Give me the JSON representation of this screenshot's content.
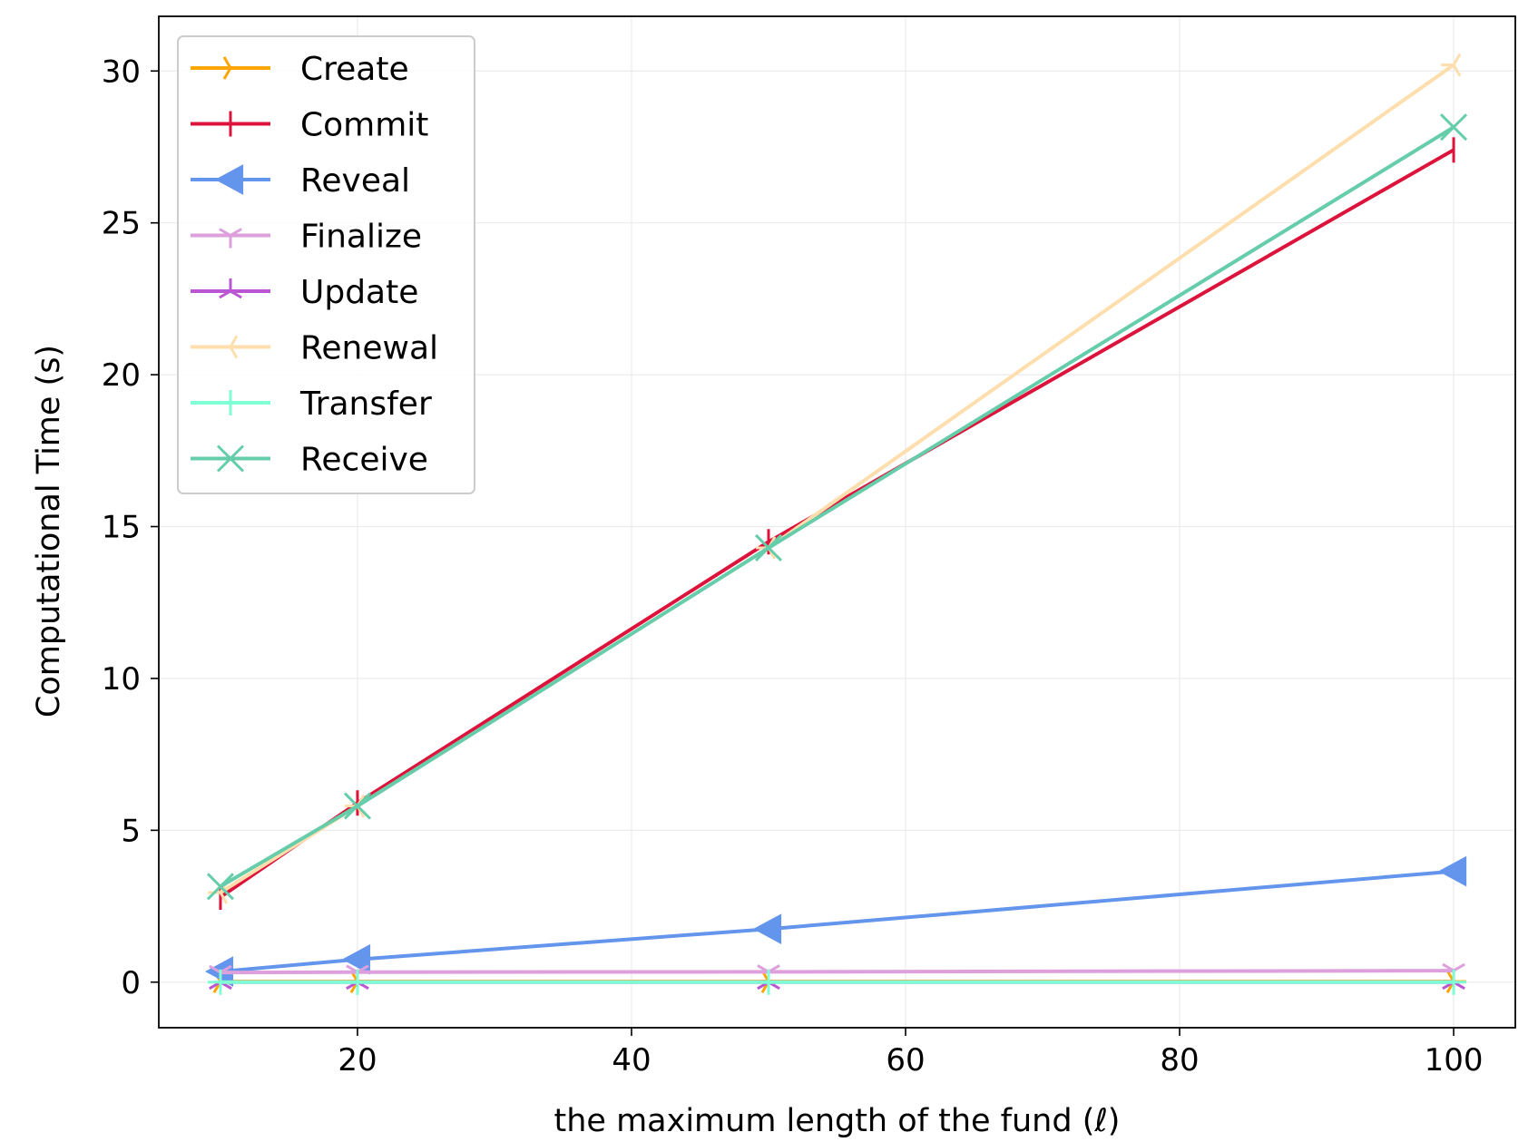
{
  "chart_data": {
    "type": "line",
    "xlabel": "the maximum length of the fund (ℓ)",
    "ylabel": "Computational Time (s)",
    "x": [
      10,
      20,
      50,
      100
    ],
    "xlim": [
      5.5,
      104.5
    ],
    "ylim": [
      -1.5,
      31.8
    ],
    "xticks": [
      20,
      40,
      60,
      80,
      100
    ],
    "xtick_labels": [
      "20",
      "40",
      "60",
      "80",
      "100"
    ],
    "yticks": [
      0,
      5,
      10,
      15,
      20,
      25,
      30
    ],
    "ytick_labels": [
      "0",
      "5",
      "10",
      "15",
      "20",
      "25",
      "30"
    ],
    "grid": true,
    "legend_position": "top-left",
    "series": [
      {
        "name": "Create",
        "color": "#FFA500",
        "marker": "tri_right",
        "values": [
          0.02,
          0.02,
          0.02,
          0.02
        ]
      },
      {
        "name": "Commit",
        "color": "#DC143C",
        "marker": "vline",
        "values": [
          2.8,
          5.9,
          14.5,
          27.4
        ]
      },
      {
        "name": "Reveal",
        "color": "#6495ED",
        "marker": "triangle_left",
        "values": [
          0.35,
          0.75,
          1.75,
          3.65
        ]
      },
      {
        "name": "Finalize",
        "color": "#DDA0DD",
        "marker": "tri_down",
        "values": [
          0.32,
          0.33,
          0.34,
          0.38
        ]
      },
      {
        "name": "Update",
        "color": "#BA55D3",
        "marker": "tri_up",
        "values": [
          0.0,
          0.0,
          0.0,
          0.0
        ]
      },
      {
        "name": "Renewal",
        "color": "#FFDEAD",
        "marker": "tri_left",
        "values": [
          2.95,
          5.8,
          14.3,
          30.2
        ]
      },
      {
        "name": "Transfer",
        "color": "#7FFFD4",
        "marker": "plus",
        "values": [
          0.0,
          0.0,
          0.0,
          0.0
        ]
      },
      {
        "name": "Receive",
        "color": "#66CDAA",
        "marker": "x",
        "values": [
          3.15,
          5.8,
          14.3,
          28.15
        ]
      }
    ]
  }
}
